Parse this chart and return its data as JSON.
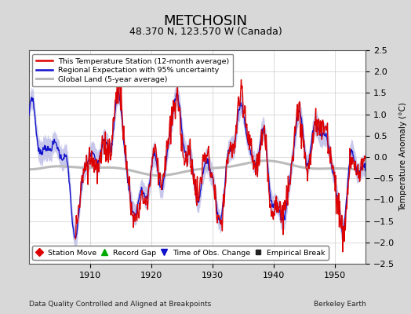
{
  "title": "METCHOSIN",
  "subtitle": "48.370 N, 123.570 W (Canada)",
  "ylabel": "Temperature Anomaly (°C)",
  "xlabel_left": "Data Quality Controlled and Aligned at Breakpoints",
  "xlabel_right": "Berkeley Earth",
  "ylim": [
    -2.5,
    2.5
  ],
  "xlim": [
    1900,
    1955
  ],
  "yticks": [
    -2.5,
    -2,
    -1.5,
    -1,
    -0.5,
    0,
    0.5,
    1,
    1.5,
    2,
    2.5
  ],
  "xticks": [
    1910,
    1920,
    1930,
    1940,
    1950
  ],
  "bg_color": "#d8d8d8",
  "plot_bg_color": "#ffffff",
  "title_fontsize": 13,
  "subtitle_fontsize": 9,
  "station_color": "#dd0000",
  "regional_color": "#1111cc",
  "regional_band_color": "#9999dd",
  "global_color": "#bbbbbb",
  "legend_items": [
    {
      "label": "This Temperature Station (12-month average)",
      "color": "#dd0000",
      "lw": 1.5
    },
    {
      "label": "Regional Expectation with 95% uncertainty",
      "color": "#1111cc",
      "lw": 1.5
    },
    {
      "label": "Global Land (5-year average)",
      "color": "#bbbbbb",
      "lw": 2.0
    }
  ],
  "marker_items": [
    {
      "label": "Station Move",
      "color": "#dd0000",
      "marker": "D"
    },
    {
      "label": "Record Gap",
      "color": "#00aa00",
      "marker": "^"
    },
    {
      "label": "Time of Obs. Change",
      "color": "#1111cc",
      "marker": "v"
    },
    {
      "label": "Empirical Break",
      "color": "#222222",
      "marker": "s"
    }
  ]
}
